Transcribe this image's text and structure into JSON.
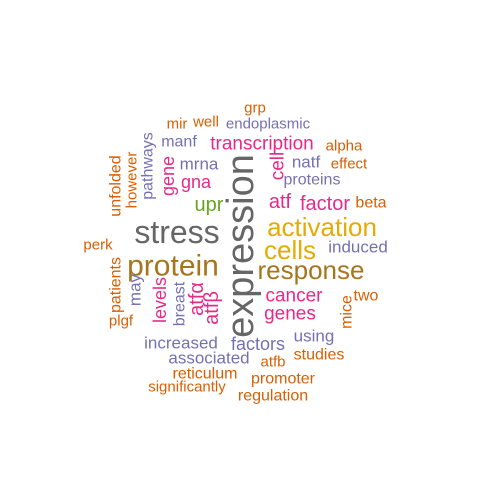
{
  "palette": {
    "orange": "#d95f02",
    "purple": "#7570b3",
    "magenta": "#e7298a",
    "green": "#66a61e",
    "gold": "#e6ab02",
    "brown": "#a6761d",
    "gray": "#666666"
  },
  "words": [
    {
      "id": "grp",
      "text": "grp",
      "color": "orange"
    },
    {
      "id": "mir",
      "text": "mir",
      "color": "orange"
    },
    {
      "id": "well",
      "text": "well",
      "color": "orange"
    },
    {
      "id": "endoplasmic",
      "text": "endoplasmic",
      "color": "purple"
    },
    {
      "id": "manf",
      "text": "manf",
      "color": "purple"
    },
    {
      "id": "transcription",
      "text": "transcription",
      "color": "magenta"
    },
    {
      "id": "alpha",
      "text": "alpha",
      "color": "orange"
    },
    {
      "id": "pathways",
      "text": "pathways",
      "color": "purple"
    },
    {
      "id": "mrna",
      "text": "mrna",
      "color": "purple"
    },
    {
      "id": "natf",
      "text": "natf",
      "color": "purple"
    },
    {
      "id": "effect",
      "text": "effect",
      "color": "orange"
    },
    {
      "id": "cell",
      "text": "cell",
      "color": "magenta"
    },
    {
      "id": "proteins",
      "text": "proteins",
      "color": "purple"
    },
    {
      "id": "unfolded",
      "text": "unfolded",
      "color": "orange"
    },
    {
      "id": "however",
      "text": "however",
      "color": "orange"
    },
    {
      "id": "gene",
      "text": "gene",
      "color": "magenta"
    },
    {
      "id": "gna",
      "text": "gna",
      "color": "magenta"
    },
    {
      "id": "upr",
      "text": "upr",
      "color": "green"
    },
    {
      "id": "atf",
      "text": "atf",
      "color": "magenta"
    },
    {
      "id": "factor",
      "text": "factor",
      "color": "magenta"
    },
    {
      "id": "beta",
      "text": "beta",
      "color": "orange"
    },
    {
      "id": "expression",
      "text": "expression",
      "color": "gray"
    },
    {
      "id": "stress",
      "text": "stress",
      "color": "gray"
    },
    {
      "id": "activation",
      "text": "activation",
      "color": "gold"
    },
    {
      "id": "perk",
      "text": "perk",
      "color": "orange"
    },
    {
      "id": "cells",
      "text": "cells",
      "color": "gold"
    },
    {
      "id": "induced",
      "text": "induced",
      "color": "purple"
    },
    {
      "id": "protein",
      "text": "protein",
      "color": "brown"
    },
    {
      "id": "response",
      "text": "response",
      "color": "brown"
    },
    {
      "id": "patients",
      "text": "patients",
      "color": "orange"
    },
    {
      "id": "may",
      "text": "may",
      "color": "purple"
    },
    {
      "id": "levels",
      "text": "levels",
      "color": "magenta"
    },
    {
      "id": "breast",
      "text": "breast",
      "color": "purple"
    },
    {
      "id": "atfa",
      "text": "atfα",
      "color": "magenta"
    },
    {
      "id": "atfb_vert",
      "text": "atfβ",
      "color": "magenta"
    },
    {
      "id": "cancer",
      "text": "cancer",
      "color": "magenta"
    },
    {
      "id": "two",
      "text": "two",
      "color": "orange"
    },
    {
      "id": "genes",
      "text": "genes",
      "color": "magenta"
    },
    {
      "id": "mice",
      "text": "mice",
      "color": "orange"
    },
    {
      "id": "plgf",
      "text": "plgf",
      "color": "orange"
    },
    {
      "id": "using",
      "text": "using",
      "color": "purple"
    },
    {
      "id": "increased",
      "text": "increased",
      "color": "purple"
    },
    {
      "id": "factors",
      "text": "factors",
      "color": "purple"
    },
    {
      "id": "associated",
      "text": "associated",
      "color": "purple"
    },
    {
      "id": "atfb",
      "text": "atfb",
      "color": "orange"
    },
    {
      "id": "studies",
      "text": "studies",
      "color": "orange"
    },
    {
      "id": "reticulum",
      "text": "reticulum",
      "color": "orange"
    },
    {
      "id": "promoter",
      "text": "promoter",
      "color": "orange"
    },
    {
      "id": "significantly",
      "text": "significantly",
      "color": "orange"
    },
    {
      "id": "regulation",
      "text": "regulation",
      "color": "orange"
    }
  ]
}
